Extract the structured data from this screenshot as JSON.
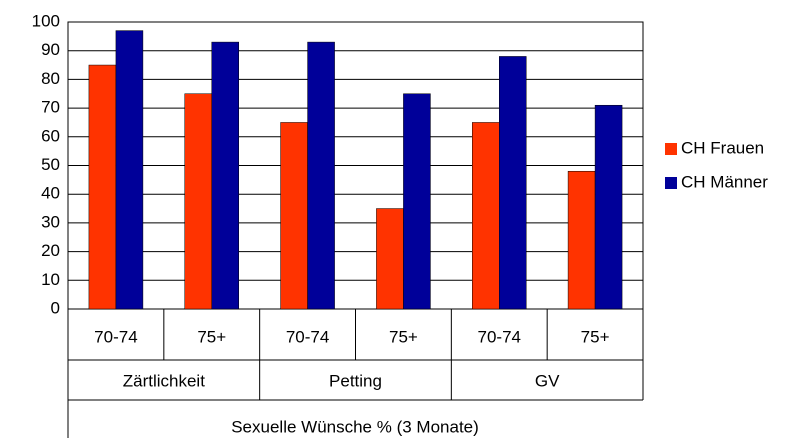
{
  "chart_data": {
    "type": "bar",
    "x_label": "Sexuelle Wünsche % (3 Monate)",
    "category_groups": [
      "Zärtlichkeit",
      "Petting",
      "GV"
    ],
    "categories": [
      "70-74",
      "75+",
      "70-74",
      "75+",
      "70-74",
      "75+"
    ],
    "series": [
      {
        "name": "CH Frauen",
        "color": "#ff3300",
        "values": [
          85,
          75,
          65,
          35,
          65,
          48
        ]
      },
      {
        "name": "CH Männer",
        "color": "#000099",
        "values": [
          97,
          93,
          93,
          75,
          88,
          71
        ]
      }
    ],
    "ylim": [
      0,
      100
    ],
    "yticks": [
      0,
      10,
      20,
      30,
      40,
      50,
      60,
      70,
      80,
      90,
      100
    ],
    "grid": true,
    "legend": "right"
  }
}
